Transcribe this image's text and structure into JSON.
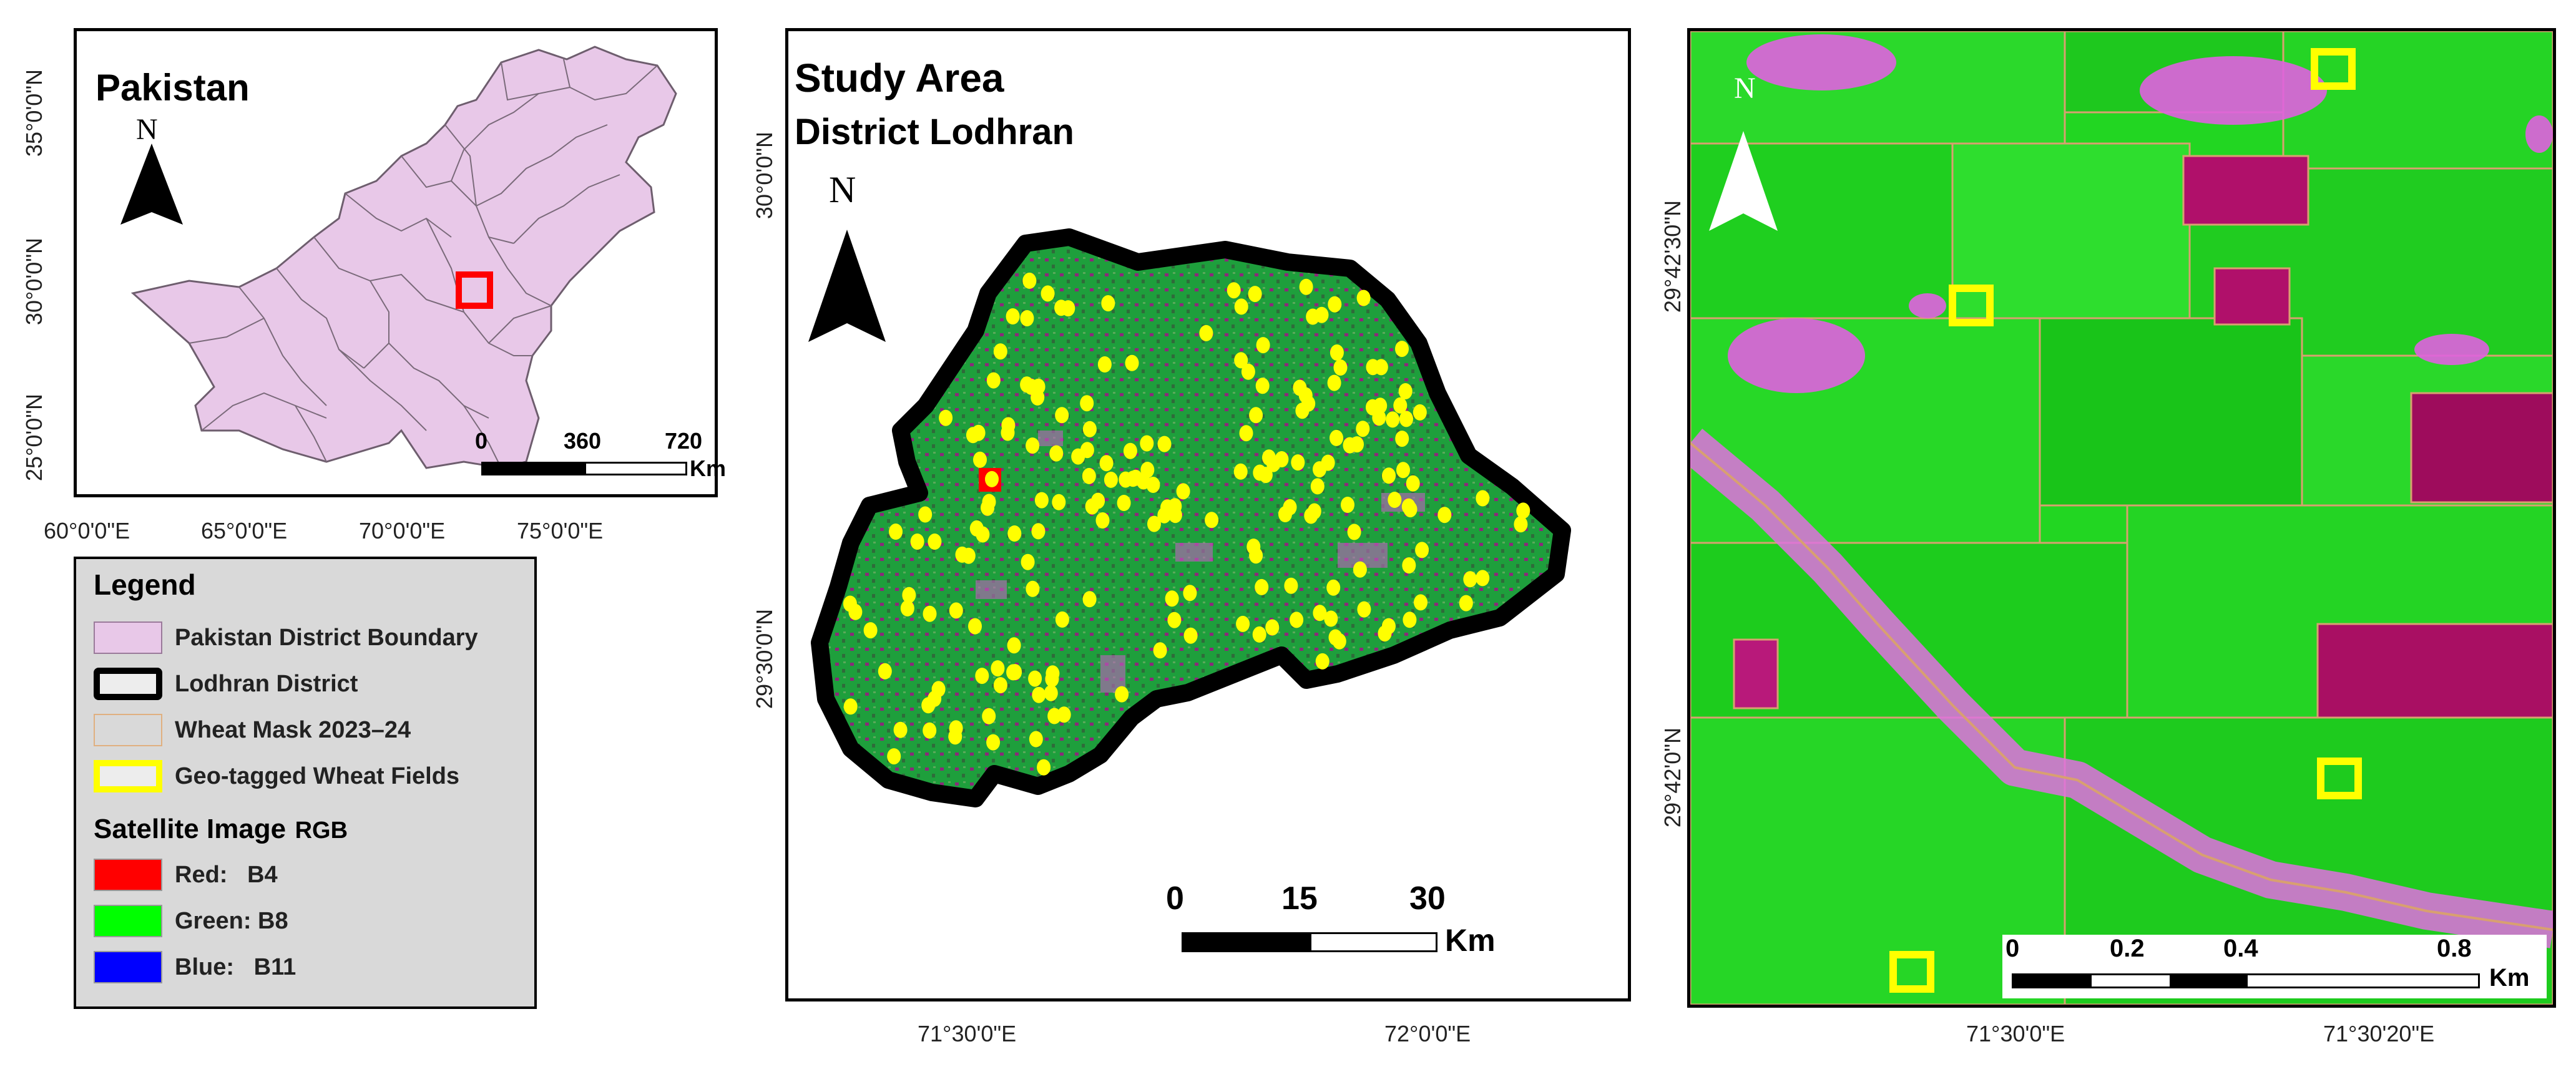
{
  "panel_pakistan": {
    "title": "Pakistan",
    "north": "N",
    "lat_ticks": [
      "35°0'0\"N",
      "30°0'0\"N",
      "25°0'0\"N"
    ],
    "lon_ticks": [
      "60°0'0\"E",
      "65°0'0\"E",
      "70°0'0\"E",
      "75°0'0\"E"
    ],
    "scale": {
      "labels": [
        "0",
        "360",
        "720"
      ],
      "unit": "Km"
    },
    "colors": {
      "fill": "#e8c8e8",
      "boundary": "#7a6a7a",
      "marker": "#ff0000"
    }
  },
  "legend": {
    "title": "Legend",
    "items": [
      {
        "label": "Pakistan District Boundary"
      },
      {
        "label": "Lodhran District"
      },
      {
        "label": "Wheat Mask 2023–24"
      },
      {
        "label": "Geo-tagged Wheat Fields"
      }
    ],
    "satellite_title": "Satellite Image",
    "satellite_suffix": "RGB",
    "bands": [
      {
        "label": "Red:   B4",
        "color": "#ff0000"
      },
      {
        "label": "Green: B8",
        "color": "#00ff00"
      },
      {
        "label": "Blue:   B11",
        "color": "#0000ff"
      }
    ]
  },
  "panel_study": {
    "title": "Study Area",
    "subtitle": "District Lodhran",
    "north": "N",
    "lat_ticks": [
      "30°0'0\"N",
      "29°30'0\"N"
    ],
    "lon_ticks": [
      "71°30'0\"E",
      "72°0'0\"E"
    ],
    "scale": {
      "labels": [
        "0",
        "15",
        "30"
      ],
      "unit": "Km"
    },
    "colors": {
      "district_fill": "#1f9e3a",
      "boundary": "#000000",
      "points": "#ffff00",
      "marker": "#ff0000"
    }
  },
  "panel_zoom": {
    "north": "N",
    "lat_ticks": [
      "29°42'30\"N",
      "29°42'0\"N"
    ],
    "lon_ticks": [
      "71°30'0\"E",
      "71°30'20\"E"
    ],
    "scale": {
      "labels": [
        "0",
        "0.2",
        "0.4",
        "0.8"
      ],
      "unit": "Km"
    },
    "colors": {
      "green": "#22d622",
      "magenta": "#b0106a",
      "pink": "#e060e0",
      "edges": "#d8a070",
      "field_marker": "#ffff00"
    }
  }
}
